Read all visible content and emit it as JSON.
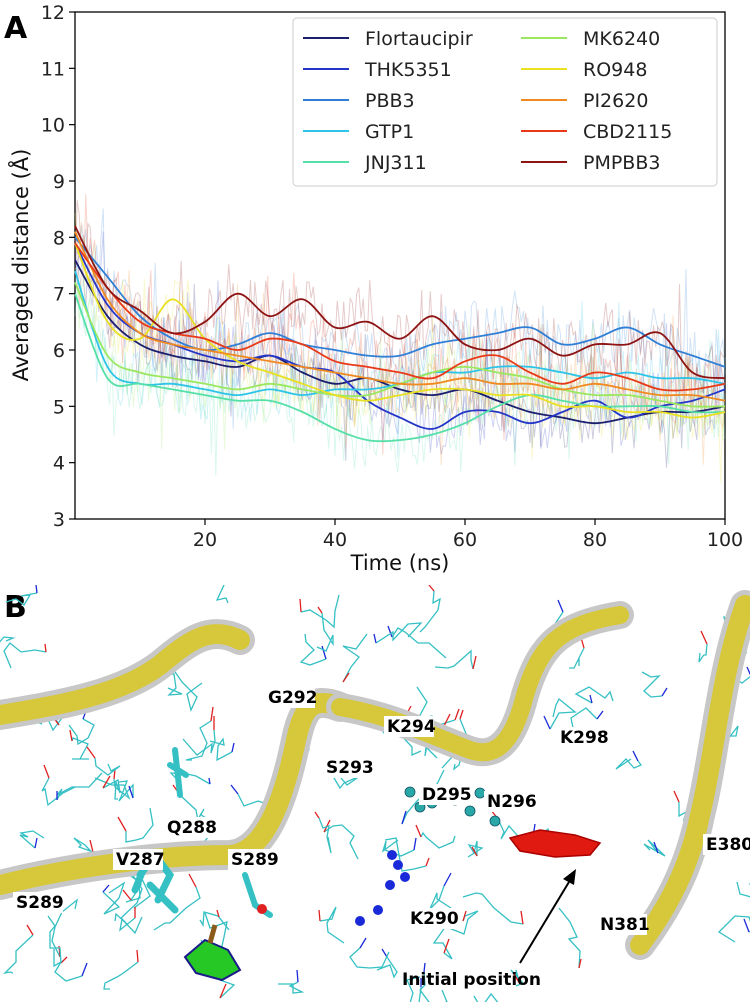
{
  "panel_a_letter": "A",
  "panel_b_letter": "B",
  "chart_data": {
    "type": "line",
    "title": "",
    "xlabel": "Time (ns)",
    "ylabel": "Averaged distance (Å)",
    "xlim": [
      0,
      100
    ],
    "ylim": [
      3,
      12
    ],
    "x_ticks": [
      20,
      40,
      60,
      80,
      100
    ],
    "y_ticks": [
      3,
      4,
      5,
      6,
      7,
      8,
      9,
      10,
      11,
      12
    ],
    "legend_position": "top-right",
    "grid": false,
    "x": [
      0,
      5,
      10,
      15,
      20,
      25,
      30,
      35,
      40,
      45,
      50,
      55,
      60,
      65,
      70,
      75,
      80,
      85,
      90,
      95,
      100
    ],
    "series": [
      {
        "name": "Flortaucipir",
        "color": "#1a1f6e",
        "values": [
          7.6,
          6.6,
          6.1,
          5.9,
          5.8,
          5.7,
          5.9,
          5.6,
          5.4,
          5.5,
          5.3,
          5.2,
          5.3,
          5.1,
          4.9,
          4.8,
          4.7,
          4.8,
          4.9,
          4.9,
          5.0
        ]
      },
      {
        "name": "THK5351",
        "color": "#2436c8",
        "values": [
          7.9,
          6.8,
          6.3,
          6.1,
          5.9,
          5.8,
          5.9,
          5.7,
          5.6,
          5.1,
          4.8,
          4.6,
          4.9,
          4.9,
          4.7,
          4.9,
          5.1,
          4.8,
          5.0,
          5.1,
          5.3
        ]
      },
      {
        "name": "PBB3",
        "color": "#2f7fd6",
        "values": [
          8.0,
          7.3,
          6.6,
          6.2,
          6.0,
          6.1,
          6.3,
          6.1,
          6.0,
          5.9,
          5.9,
          6.1,
          6.2,
          6.3,
          6.4,
          6.1,
          6.2,
          6.4,
          6.1,
          5.9,
          5.7
        ]
      },
      {
        "name": "GTP1",
        "color": "#2ec4e8",
        "values": [
          7.4,
          5.7,
          5.4,
          5.4,
          5.3,
          5.2,
          5.3,
          5.2,
          5.3,
          5.3,
          5.4,
          5.6,
          5.6,
          5.7,
          5.7,
          5.6,
          5.5,
          5.6,
          5.5,
          5.5,
          5.4
        ]
      },
      {
        "name": "JNJ311",
        "color": "#55e0a8",
        "values": [
          7.0,
          5.5,
          5.4,
          5.3,
          5.2,
          5.1,
          5.1,
          4.9,
          4.6,
          4.4,
          4.4,
          4.5,
          4.7,
          5.0,
          5.2,
          5.1,
          5.0,
          5.0,
          5.0,
          4.9,
          4.9
        ]
      },
      {
        "name": "MK6240",
        "color": "#9ae860",
        "values": [
          7.2,
          5.9,
          5.6,
          5.5,
          5.4,
          5.3,
          5.4,
          5.3,
          5.2,
          5.2,
          5.4,
          5.6,
          5.7,
          5.6,
          5.5,
          5.3,
          5.2,
          5.2,
          5.1,
          5.0,
          5.0
        ]
      },
      {
        "name": "RO948",
        "color": "#e8e020",
        "values": [
          7.9,
          6.5,
          6.2,
          6.9,
          6.2,
          5.8,
          5.6,
          5.4,
          5.2,
          5.1,
          5.2,
          5.3,
          5.3,
          5.2,
          5.2,
          5.0,
          5.0,
          4.9,
          4.9,
          4.8,
          4.9
        ]
      },
      {
        "name": "PI2620",
        "color": "#f08a20",
        "values": [
          8.1,
          6.9,
          6.3,
          6.1,
          6.0,
          5.9,
          5.8,
          5.7,
          5.6,
          5.5,
          5.4,
          5.4,
          5.5,
          5.4,
          5.4,
          5.3,
          5.4,
          5.3,
          5.2,
          5.2,
          5.1
        ]
      },
      {
        "name": "CBD2115",
        "color": "#e83a18",
        "values": [
          7.9,
          7.1,
          6.5,
          6.3,
          6.2,
          6.0,
          6.2,
          6.1,
          5.8,
          5.7,
          5.6,
          5.5,
          5.8,
          5.9,
          5.6,
          5.4,
          5.6,
          5.5,
          5.3,
          5.3,
          5.4
        ]
      },
      {
        "name": "PMPBB3",
        "color": "#8e1414",
        "values": [
          8.2,
          7.1,
          6.7,
          6.3,
          6.5,
          7.0,
          6.6,
          6.9,
          6.4,
          6.5,
          6.2,
          6.6,
          6.1,
          6.0,
          6.2,
          5.9,
          6.1,
          6.1,
          6.3,
          5.6,
          5.5
        ]
      }
    ]
  },
  "structure": {
    "residue_labels": [
      "G292",
      "K294",
      "S293",
      "K298",
      "D295",
      "N296",
      "Q288",
      "V287",
      "S289",
      "S289",
      "E380",
      "K290",
      "N381"
    ],
    "annotation": "Initial position",
    "colors": {
      "ribbon": "#d6c83a",
      "ribbon_edge": "#b8b8b8",
      "stick": "#35c0c4",
      "oxygen": "#e02020",
      "nitrogen": "#1a2ad8",
      "ligand": "#e01a10",
      "ligand_green": "#25c825"
    }
  }
}
